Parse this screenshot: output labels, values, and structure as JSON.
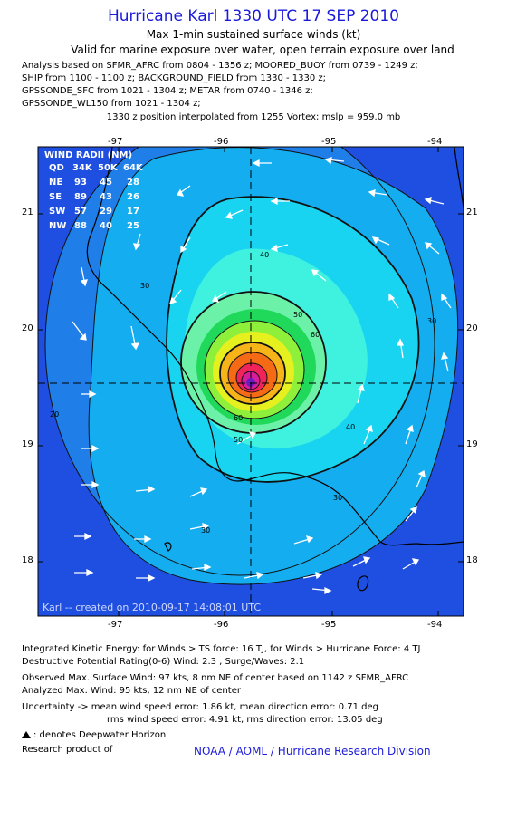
{
  "header": {
    "title": "Hurricane Karl 1330 UTC 17 SEP 2010",
    "subtitle1": "Max 1-min sustained surface winds (kt)",
    "subtitle2": "Valid for marine exposure over water, open terrain exposure over land",
    "analysis_lines": [
      "Analysis based on SFMR_AFRC from 0804 - 1356 z; MOORED_BUOY from 0739 - 1249 z;",
      "SHIP from 1100 - 1100 z; BACKGROUND_FIELD from 1330 - 1330 z;",
      "GPSSONDE_SFC from 1021 - 1304 z; METAR from 0740 - 1346 z;",
      "GPSSONDE_WL150 from 1021 - 1304 z;"
    ],
    "position_line": "1330 z position interpolated from 1255 Vortex; mslp = 959.0 mb"
  },
  "chart_data": {
    "type": "contour-map",
    "x_ticks": [
      "-97",
      "-96",
      "-95",
      "-94"
    ],
    "y_ticks": [
      "21",
      "20",
      "19",
      "18"
    ],
    "xlim": [
      -97.75,
      -93.75
    ],
    "ylim": [
      17.45,
      21.55
    ],
    "center": {
      "lon": -95.75,
      "lat": 19.53
    },
    "contour_levels": [
      10,
      20,
      30,
      40,
      50,
      60,
      70,
      80,
      90
    ],
    "contour_labels": [
      "30",
      "40",
      "50",
      "60",
      "50",
      "60",
      "40",
      "30",
      "30",
      "30",
      "20"
    ],
    "wind_radii": {
      "title": "WIND RADII (NM)",
      "header": [
        "QD",
        "34K",
        "50K",
        "64K"
      ],
      "rows": [
        [
          "NE",
          "93",
          "45",
          "28"
        ],
        [
          "SE",
          "89",
          "43",
          "26"
        ],
        [
          "SW",
          "57",
          "29",
          "17"
        ],
        [
          "NW",
          "88",
          "40",
          "25"
        ]
      ]
    },
    "credit": "Karl -- created on 2010-09-17 14:08:01 UTC"
  },
  "colors": {
    "accent": "#1a1adb",
    "outer_blue": "#1e4fe0",
    "fill_levels": [
      "#1e4fe0",
      "#1f7ee8",
      "#14aef0",
      "#19d4f0",
      "#3ff2e0",
      "#6cf2a8",
      "#20d95a",
      "#8ef03a",
      "#e6f01e",
      "#f7b418",
      "#f56a14",
      "#f0245a",
      "#d81c9c",
      "#6a1cc0"
    ]
  },
  "footer": {
    "ike": "Integrated Kinetic Energy:  for Winds > TS force: 16 TJ,  for Winds > Hurricane Force: 4 TJ",
    "destructive": "Destructive Potential Rating(0-6)   Wind: 2.3 , Surge/Waves: 2.1",
    "observed": "Observed Max. Surface Wind: 97 kts, 8 nm NE of center based on 1142 z SFMR_AFRC",
    "analyzed": "Analyzed Max. Wind: 95 kts, 12 nm NE of center",
    "uncertainty1": "Uncertainty -> mean wind speed error: 1.86 kt,   mean direction error: 0.71 deg",
    "uncertainty2": "rms wind speed error: 4.91 kt,   rms direction error: 13.05 deg",
    "deepwater": ": denotes Deepwater Horizon",
    "research": "Research product of",
    "org": "NOAA / AOML / Hurricane Research Division"
  }
}
